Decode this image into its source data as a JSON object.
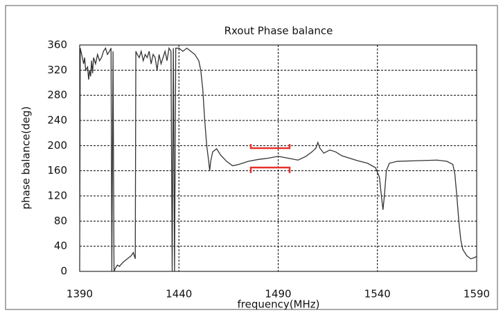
{
  "chart_data": {
    "type": "line",
    "title": "Rxout Phase balance",
    "x_label": "frequency(MHz)",
    "y_label": "phase balance(deg)",
    "xlim": [
      1390,
      1590
    ],
    "xticks": [
      1390,
      1440,
      1490,
      1540,
      1590
    ],
    "ylim": [
      0,
      360
    ],
    "yticks": [
      0,
      40,
      80,
      120,
      160,
      200,
      240,
      280,
      320,
      360
    ],
    "grid": true,
    "series": [
      {
        "color": "#333333",
        "x": [
          1390,
          1390.3,
          1391,
          1392,
          1392.5,
          1393,
          1394,
          1394.5,
          1395,
          1395.5,
          1396,
          1396.5,
          1397,
          1398,
          1399,
          1400,
          1401,
          1402,
          1403,
          1404,
          1405,
          1405.8,
          1406.2,
          1406.8,
          1407.3,
          1408,
          1409,
          1410,
          1412,
          1414,
          1416,
          1417,
          1418,
          1418.3,
          1419,
          1420,
          1421,
          1422,
          1423,
          1424,
          1425,
          1426,
          1427,
          1428,
          1429,
          1430,
          1431,
          1432,
          1433,
          1434,
          1435,
          1436,
          1436.6,
          1437.2,
          1437.8,
          1438.4,
          1440,
          1442,
          1444,
          1446,
          1448,
          1450,
          1451,
          1452,
          1453,
          1454,
          1455,
          1455.5,
          1456,
          1457,
          1459,
          1461,
          1464,
          1467,
          1470,
          1475,
          1480,
          1485,
          1490,
          1495,
          1500,
          1504,
          1507,
          1509,
          1510,
          1511,
          1513,
          1516,
          1519,
          1522,
          1526,
          1530,
          1535,
          1539,
          1541,
          1542,
          1542.8,
          1543.5,
          1544.5,
          1546,
          1550,
          1560,
          1570,
          1575,
          1578,
          1579,
          1580,
          1581,
          1582,
          1583,
          1585,
          1587,
          1589,
          1590
        ],
        "values": [
          0,
          355,
          345,
          330,
          340,
          320,
          325,
          305,
          320,
          310,
          335,
          315,
          340,
          330,
          345,
          335,
          340,
          350,
          355,
          345,
          350,
          355,
          0,
          350,
          0,
          5,
          10,
          8,
          15,
          20,
          25,
          30,
          20,
          350,
          345,
          340,
          350,
          335,
          345,
          340,
          350,
          330,
          345,
          340,
          320,
          345,
          330,
          340,
          350,
          335,
          355,
          350,
          0,
          355,
          0,
          355,
          355,
          350,
          355,
          350,
          345,
          335,
          320,
          290,
          240,
          200,
          175,
          160,
          175,
          190,
          195,
          185,
          175,
          168,
          170,
          175,
          178,
          180,
          183,
          180,
          177,
          183,
          190,
          196,
          205,
          196,
          188,
          193,
          190,
          184,
          180,
          176,
          172,
          165,
          150,
          120,
          98,
          120,
          160,
          172,
          175,
          176,
          177,
          175,
          170,
          155,
          120,
          80,
          50,
          35,
          25,
          20,
          22,
          24
        ]
      }
    ]
  }
}
